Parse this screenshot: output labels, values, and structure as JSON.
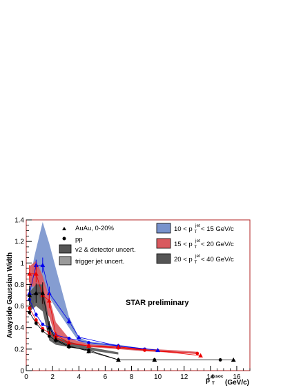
{
  "chart_data": {
    "type": "scatter",
    "ylabel": "Awayside Gaussian Width",
    "xlabel_main": "p",
    "xlabel_sub": "T",
    "xlabel_sup": "assoc",
    "xlabel_unit": "(GeV/c)",
    "annotation": "STAR preliminary",
    "xlim": [
      0,
      17
    ],
    "ylim": [
      0,
      1.4
    ],
    "xticks": [
      0,
      2,
      4,
      6,
      8,
      10,
      12,
      14,
      16
    ],
    "yticks": [
      0,
      0.2,
      0.4,
      0.6,
      0.8,
      1,
      1.2,
      1.4
    ],
    "xtick_labels": [
      "0",
      "2",
      "4",
      "6",
      "8",
      "10",
      "12",
      "14",
      "16"
    ],
    "ytick_labels": [
      "0",
      "0.2",
      "0.4",
      "0.6",
      "0.8",
      "1",
      "1.2",
      "1.4"
    ],
    "frame_color": "#b22222",
    "legend_left": {
      "auau_label": "AuAu, 0-20%",
      "pp_label": "pp",
      "v2_label": "v2 & detector uncert.",
      "trig_label": "trigger jet uncert."
    },
    "legend_right": [
      {
        "pre": "10 < p",
        "sub": "T",
        "sup": "jet",
        "post": " < 15 GeV/c",
        "color": "#7892cc"
      },
      {
        "pre": "15 < p",
        "sub": "T",
        "sup": "jet",
        "post": " < 20 GeV/c",
        "color": "#d9595e"
      },
      {
        "pre": "20 < p",
        "sub": "T",
        "sup": "jet",
        "post": " < 40 GeV/c",
        "color": "#555555"
      }
    ],
    "bands": [
      {
        "name": "v2 uncert 10-15",
        "color": "#7892cc",
        "upper": [
          [
            0.25,
            0.8
          ],
          [
            0.6,
            1.05
          ],
          [
            1.25,
            1.38
          ],
          [
            1.75,
            1.18
          ],
          [
            2.25,
            0.95
          ],
          [
            3.25,
            0.5
          ],
          [
            4.0,
            0.31
          ],
          [
            4.75,
            0.27
          ],
          [
            7.0,
            0.24
          ],
          [
            9.0,
            0.205
          ],
          [
            10.0,
            0.195
          ]
        ],
        "lower": [
          [
            10.0,
            0.175
          ],
          [
            9.0,
            0.19
          ],
          [
            7.0,
            0.215
          ],
          [
            4.75,
            0.24
          ],
          [
            4.0,
            0.27
          ],
          [
            3.25,
            0.4
          ],
          [
            2.25,
            0.58
          ],
          [
            1.75,
            0.68
          ],
          [
            1.25,
            0.82
          ],
          [
            0.6,
            0.64
          ],
          [
            0.25,
            0.52
          ]
        ]
      },
      {
        "name": "v2 uncert 15-20",
        "color": "#d9595e",
        "upper": [
          [
            0.25,
            0.97
          ],
          [
            0.75,
            1.02
          ],
          [
            1.25,
            0.88
          ],
          [
            1.75,
            0.68
          ],
          [
            2.25,
            0.45
          ],
          [
            3.25,
            0.3
          ],
          [
            4.75,
            0.245
          ],
          [
            7.0,
            0.225
          ],
          [
            9.0,
            0.205
          ],
          [
            11.5,
            0.188
          ],
          [
            13.0,
            0.175
          ]
        ],
        "lower": [
          [
            13.0,
            0.155
          ],
          [
            11.5,
            0.165
          ],
          [
            9.0,
            0.18
          ],
          [
            7.0,
            0.2
          ],
          [
            4.75,
            0.22
          ],
          [
            3.25,
            0.25
          ],
          [
            2.25,
            0.3
          ],
          [
            1.75,
            0.5
          ],
          [
            1.25,
            0.58
          ],
          [
            0.75,
            0.78
          ],
          [
            0.25,
            0.78
          ]
        ]
      },
      {
        "name": "v2 uncert 20-40",
        "color": "#555555",
        "upper": [
          [
            0.25,
            0.73
          ],
          [
            0.75,
            0.8
          ],
          [
            1.25,
            0.8
          ],
          [
            1.75,
            0.45
          ],
          [
            2.25,
            0.31
          ],
          [
            3.25,
            0.27
          ],
          [
            4.75,
            0.22
          ],
          [
            7.0,
            0.17
          ]
        ],
        "lower": [
          [
            7.0,
            0.15
          ],
          [
            4.75,
            0.19
          ],
          [
            3.25,
            0.22
          ],
          [
            2.25,
            0.24
          ],
          [
            1.75,
            0.28
          ],
          [
            1.25,
            0.55
          ],
          [
            0.75,
            0.6
          ],
          [
            0.25,
            0.55
          ]
        ]
      }
    ],
    "series": [
      {
        "name": "AuAu 10-15",
        "marker": "triangle",
        "color": "#0000ee",
        "x": [
          0.25,
          0.75,
          1.25,
          1.75,
          3.25,
          4.0,
          7.0,
          10.0
        ],
        "y": [
          0.72,
          0.98,
          0.98,
          0.72,
          0.46,
          0.31,
          0.23,
          0.19
        ],
        "err": [
          0.05,
          0.05,
          0.07,
          0.06,
          0.03,
          0.02,
          0.01,
          0.01
        ]
      },
      {
        "name": "pp 10-15",
        "marker": "circle",
        "color": "#0000ee",
        "x": [
          0.25,
          0.75,
          1.25,
          1.75,
          2.25,
          3.25,
          4.75,
          7.0,
          9.0
        ],
        "y": [
          0.66,
          0.52,
          0.43,
          0.4,
          0.33,
          0.3,
          0.26,
          0.23,
          0.2
        ],
        "err": [
          0.02,
          0.02,
          0.01,
          0.01,
          0.01,
          0.01,
          0.01,
          0.01,
          0.01
        ]
      },
      {
        "name": "AuAu 15-20",
        "marker": "triangle",
        "color": "#ee0000",
        "x": [
          0.25,
          0.75,
          1.25,
          1.75,
          2.25,
          3.25,
          4.75,
          7.0,
          13.25
        ],
        "y": [
          0.9,
          0.9,
          0.7,
          0.65,
          0.33,
          0.26,
          0.23,
          0.22,
          0.14
        ],
        "err": [
          0.08,
          0.08,
          0.08,
          0.07,
          0.03,
          0.02,
          0.01,
          0.01,
          0.01
        ]
      },
      {
        "name": "pp 15-20",
        "marker": "circle",
        "color": "#ee0000",
        "x": [
          0.25,
          0.75,
          1.25,
          1.75,
          2.25,
          3.25,
          4.75,
          7.0,
          9.0,
          13.0
        ],
        "y": [
          0.58,
          0.47,
          0.39,
          0.35,
          0.3,
          0.25,
          0.23,
          0.21,
          0.19,
          0.16
        ],
        "err": [
          0.02,
          0.02,
          0.01,
          0.01,
          0.01,
          0.01,
          0.01,
          0.01,
          0.01,
          0.01
        ]
      },
      {
        "name": "AuAu 20-40",
        "marker": "triangle",
        "color": "#000000",
        "x": [
          0.25,
          0.75,
          1.25,
          1.75,
          2.25,
          3.25,
          4.75,
          7.0,
          9.75,
          15.75
        ],
        "y": [
          0.7,
          0.72,
          0.72,
          0.4,
          0.29,
          0.23,
          0.18,
          0.1,
          0.1,
          0.1
        ],
        "err": [
          0.09,
          0.09,
          0.1,
          0.06,
          0.03,
          0.02,
          0.02,
          0.01,
          0.01,
          0.01
        ]
      },
      {
        "name": "pp 20-40",
        "marker": "circle",
        "color": "#000000",
        "x": [
          0.25,
          0.75,
          1.25,
          1.75,
          2.25,
          3.25,
          4.75,
          7.0,
          9.75,
          14.75
        ],
        "y": [
          0.54,
          0.44,
          0.37,
          0.32,
          0.28,
          0.22,
          0.19,
          0.1,
          0.1,
          0.1
        ],
        "err": [
          0.02,
          0.02,
          0.01,
          0.01,
          0.01,
          0.01,
          0.01,
          0.01,
          0.01,
          0.01
        ]
      }
    ]
  }
}
